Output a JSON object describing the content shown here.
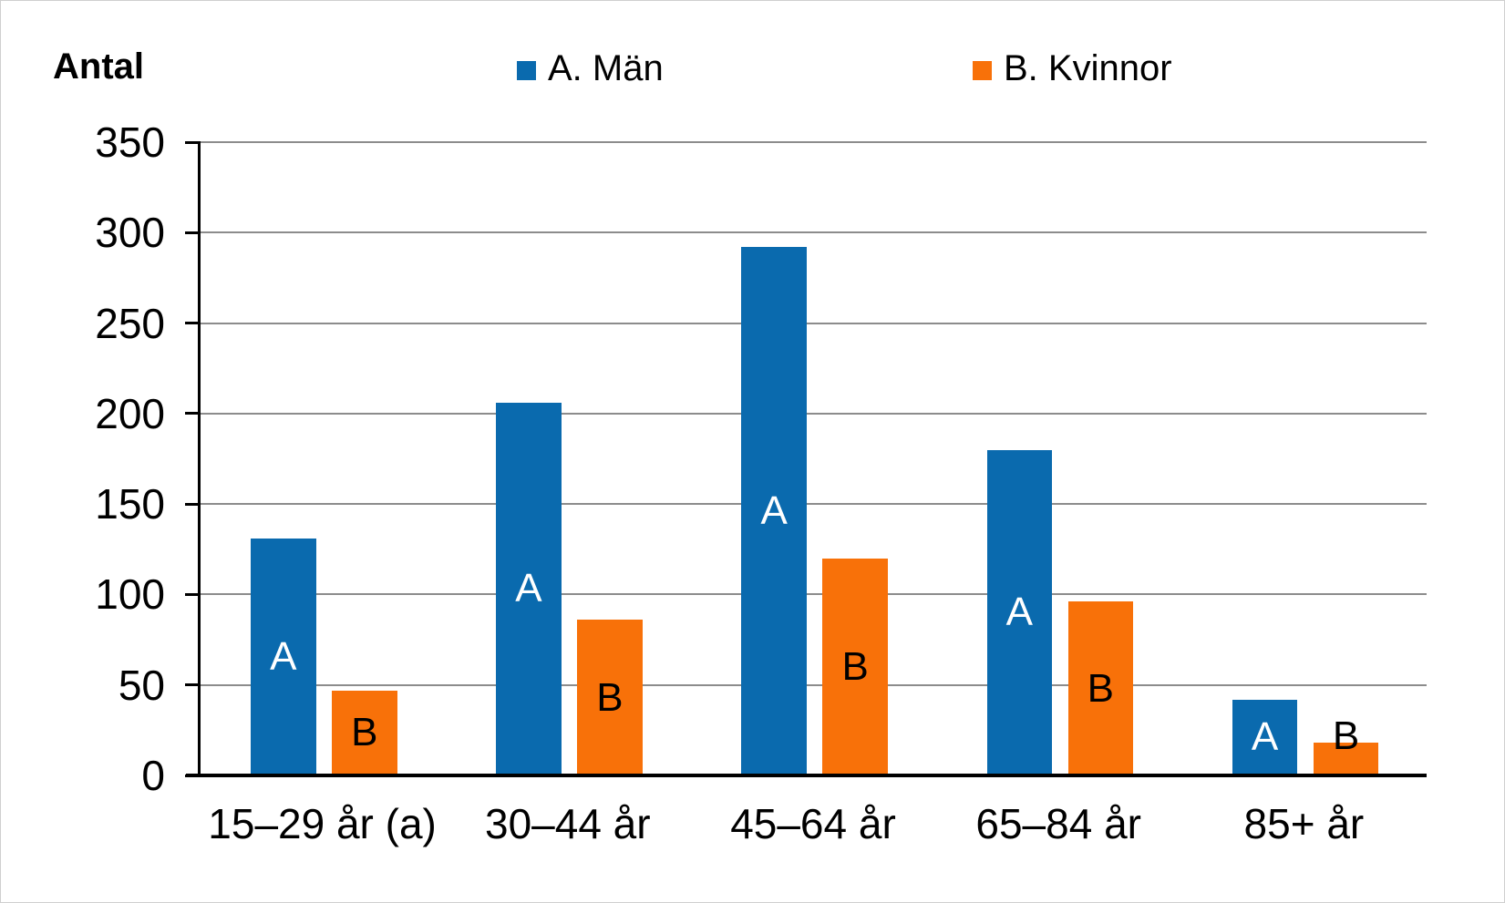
{
  "title": "Antal",
  "legend": [
    {
      "label": "A. Män",
      "color": "#0a6aae"
    },
    {
      "label": "B. Kvinnor",
      "color": "#f87109"
    }
  ],
  "chart_data": {
    "type": "bar",
    "title": "Antal",
    "ylabel": "Antal",
    "categories": [
      "15–29 år (a)",
      "30–44 år",
      "45–64 år",
      "65–84 år",
      "85+ år"
    ],
    "series": [
      {
        "name": "A. Män",
        "letter": "A",
        "color": "#0a6aae",
        "label_color": "#ffffff",
        "values": [
          131,
          206,
          292,
          180,
          42
        ]
      },
      {
        "name": "B. Kvinnor",
        "letter": "B",
        "color": "#f87109",
        "label_color": "#000000",
        "values": [
          47,
          86,
          120,
          96,
          18
        ]
      }
    ],
    "ylim": [
      0,
      350
    ],
    "yticks": [
      0,
      50,
      100,
      150,
      200,
      250,
      300,
      350
    ],
    "grid": true,
    "gridline_color": "#8c8c8c",
    "axis_color": "#000000",
    "legend_position": "top"
  }
}
